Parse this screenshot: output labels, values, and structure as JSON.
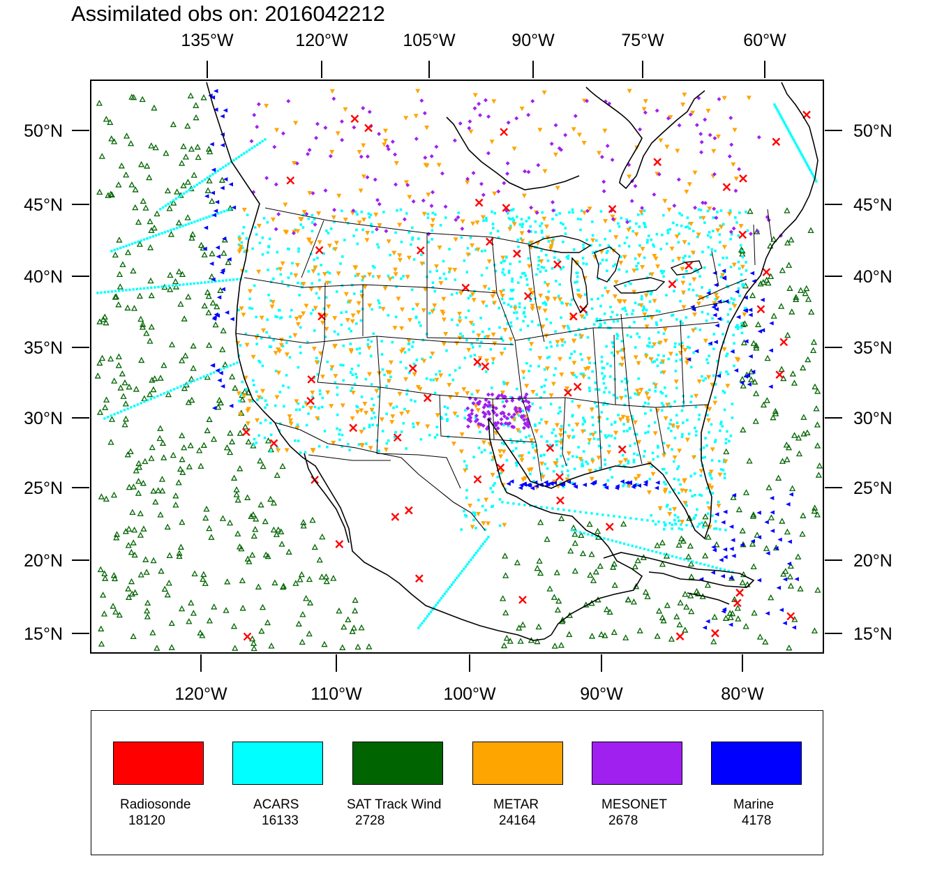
{
  "title": "Assimilated obs on: 2016042212",
  "axes": {
    "top_lon_labels": [
      "135°W",
      "120°W",
      "105°W",
      "90°W",
      "75°W",
      "60°W"
    ],
    "bottom_lon_labels": [
      "120°W",
      "110°W",
      "100°W",
      "90°W",
      "80°W"
    ],
    "lat_labels": [
      "50°N",
      "45°N",
      "40°N",
      "35°N",
      "30°N",
      "25°N",
      "20°N",
      "15°N"
    ]
  },
  "legend": [
    {
      "name": "Radiosonde",
      "count": "18120",
      "color": "#ff0000",
      "marker": "x-cross"
    },
    {
      "name": "ACARS",
      "count": "16133",
      "color": "#00ffff",
      "marker": "dot"
    },
    {
      "name": "SAT Track Wind",
      "count": "2728",
      "color": "#006400",
      "marker": "hollow-triangle-up"
    },
    {
      "name": "METAR",
      "count": "24164",
      "color": "#ffa500",
      "marker": "triangle-down"
    },
    {
      "name": "MESONET",
      "count": "2678",
      "color": "#a020f0",
      "marker": "diamond"
    },
    {
      "name": "Marine",
      "count": "4178",
      "color": "#0000ff",
      "marker": "triangle-left"
    }
  ]
}
